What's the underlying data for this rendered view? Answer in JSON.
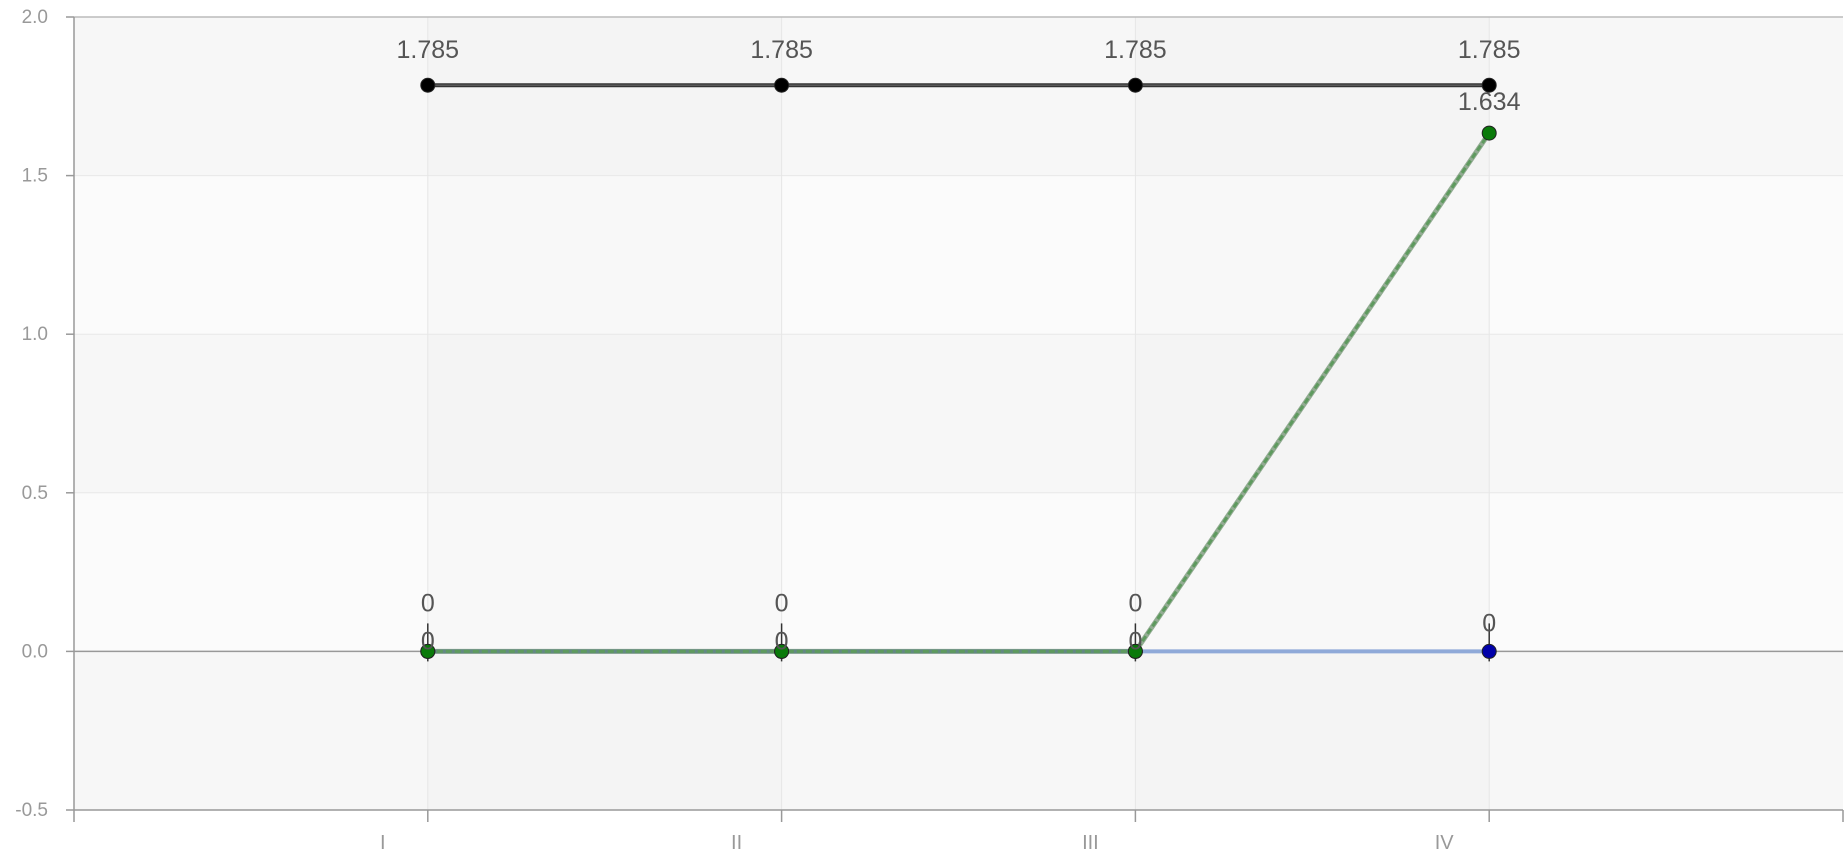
{
  "chart_data": {
    "type": "line",
    "title": "",
    "xlabel": "",
    "ylabel": "",
    "categories": [
      "I",
      "II",
      "III",
      "IV"
    ],
    "ylim": [
      -0.5,
      2.0
    ],
    "yticks": [
      "2.0",
      "1.5",
      "1.0",
      "0.5",
      "0.0",
      "-0.5"
    ],
    "grid": true,
    "legend": "none",
    "series": [
      {
        "values": [
          1.785,
          1.785,
          1.785,
          1.785
        ],
        "labels": [
          "1.785",
          "1.785",
          "1.785",
          "1.785"
        ],
        "color": "#333333",
        "marker_color": "#000000",
        "style": "solid"
      },
      {
        "values": [
          0,
          0,
          0,
          0
        ],
        "labels": [
          "0",
          "0",
          "0",
          "0"
        ],
        "color": "#8fa9d8",
        "marker_color": "#0000aa",
        "style": "solid"
      },
      {
        "values": [
          0,
          0,
          0,
          1.634
        ],
        "labels": [
          "0",
          "0",
          "0",
          "1.634"
        ],
        "color": "#5e9a5e",
        "marker_color": "#0a7a0a",
        "style": "dashed"
      }
    ]
  }
}
